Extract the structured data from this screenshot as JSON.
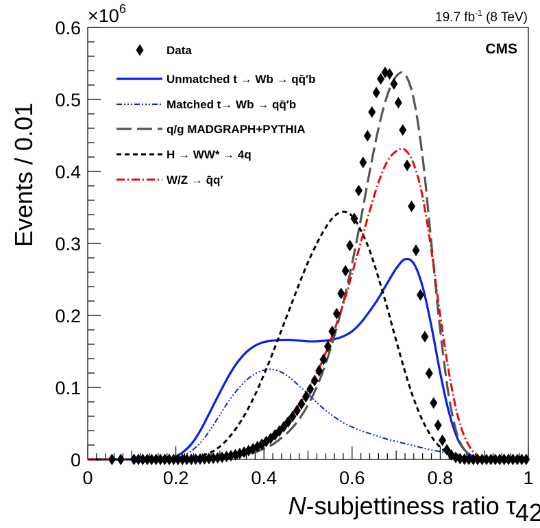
{
  "chart_data": {
    "type": "line",
    "title": "",
    "xlabel_italic": "N",
    "xlabel_rest": "-subjettiness ratio τ",
    "xlabel_sub": "42",
    "ylabel": "Events / 0.01",
    "multiplier_base": "×10",
    "multiplier_exp": "6",
    "lumi_main": "19.7 fb",
    "lumi_sup": "-1",
    "lumi_tail": " (8 TeV)",
    "experiment": "CMS",
    "xlim": [
      0,
      1
    ],
    "ylim": [
      0,
      0.6
    ],
    "x_ticks": [
      {
        "v": 0,
        "label": "0"
      },
      {
        "v": 0.2,
        "label": "0.2"
      },
      {
        "v": 0.4,
        "label": "0.4"
      },
      {
        "v": 0.6,
        "label": "0.6"
      },
      {
        "v": 0.8,
        "label": "0.8"
      },
      {
        "v": 1,
        "label": "1"
      }
    ],
    "y_ticks": [
      {
        "v": 0,
        "label": "0"
      },
      {
        "v": 0.1,
        "label": "0.1"
      },
      {
        "v": 0.2,
        "label": "0.2"
      },
      {
        "v": 0.3,
        "label": "0.3"
      },
      {
        "v": 0.4,
        "label": "0.4"
      },
      {
        "v": 0.5,
        "label": "0.5"
      },
      {
        "v": 0.6,
        "label": "0.6"
      }
    ],
    "legend": [
      {
        "key": "data",
        "label": "Data",
        "style": "marker"
      },
      {
        "key": "unmatched",
        "label": "Unmatched t → Wb → qq̄′b",
        "style": "line"
      },
      {
        "key": "matched",
        "label": "Matched t→ Wb → qq̄′b",
        "style": "line"
      },
      {
        "key": "qg",
        "label": "q/g MADGRAPH+PYTHIA",
        "style": "line"
      },
      {
        "key": "hww",
        "label": "H → WW* → 4q",
        "style": "line"
      },
      {
        "key": "wz",
        "label": "W/Z → q̄q′",
        "style": "line"
      }
    ],
    "data_points": {
      "x": [
        0.055,
        0.075,
        0.105,
        0.115,
        0.125,
        0.135,
        0.145,
        0.155,
        0.165,
        0.175,
        0.185,
        0.195,
        0.205,
        0.215,
        0.225,
        0.235,
        0.245,
        0.255,
        0.265,
        0.275,
        0.285,
        0.295,
        0.305,
        0.315,
        0.325,
        0.335,
        0.345,
        0.355,
        0.365,
        0.375,
        0.385,
        0.395,
        0.405,
        0.415,
        0.425,
        0.435,
        0.445,
        0.455,
        0.465,
        0.475,
        0.485,
        0.495,
        0.505,
        0.515,
        0.525,
        0.535,
        0.545,
        0.555,
        0.565,
        0.575,
        0.585,
        0.595,
        0.605,
        0.615,
        0.625,
        0.635,
        0.645,
        0.655,
        0.665,
        0.675,
        0.685,
        0.695,
        0.705,
        0.715,
        0.725,
        0.735,
        0.745,
        0.755,
        0.765,
        0.775,
        0.785,
        0.795,
        0.805,
        0.815,
        0.825,
        0.835,
        0.845,
        0.855,
        0.865,
        0.875,
        0.885,
        0.895,
        0.905,
        0.915,
        0.925,
        0.935,
        0.945,
        0.955,
        0.965,
        0.975,
        0.985,
        0.995
      ],
      "y": [
        0,
        0,
        0,
        0,
        0,
        0,
        0,
        0,
        0,
        0,
        0,
        0,
        0,
        0,
        0,
        0,
        0.0003,
        0.0005,
        0.0008,
        0.0012,
        0.0017,
        0.0023,
        0.003,
        0.004,
        0.0052,
        0.0066,
        0.0082,
        0.0101,
        0.0123,
        0.0149,
        0.0178,
        0.0211,
        0.0249,
        0.0291,
        0.034,
        0.0394,
        0.0455,
        0.0523,
        0.0598,
        0.068,
        0.077,
        0.0869,
        0.0977,
        0.1095,
        0.1232,
        0.1388,
        0.157,
        0.178,
        0.2025,
        0.2305,
        0.262,
        0.297,
        0.3345,
        0.3735,
        0.4125,
        0.4495,
        0.4825,
        0.5095,
        0.5285,
        0.5375,
        0.5355,
        0.5215,
        0.4955,
        0.4575,
        0.4085,
        0.3515,
        0.2905,
        0.2285,
        0.1705,
        0.1195,
        0.0785,
        0.0475,
        0.0265,
        0.0135,
        0.0063,
        0.0027,
        0.0011,
        0.0004,
        0.0001,
        0,
        0,
        0,
        0,
        0,
        0,
        0,
        0,
        0,
        0,
        0,
        0,
        0
      ]
    },
    "series": [
      {
        "key": "unmatched",
        "name": "Unmatched t → Wb → qq̄′b",
        "color": "#0a1ee6",
        "dash": "",
        "width": 3.2,
        "x": [
          0,
          0.15,
          0.18,
          0.2,
          0.22,
          0.24,
          0.26,
          0.28,
          0.3,
          0.32,
          0.34,
          0.36,
          0.38,
          0.4,
          0.42,
          0.44,
          0.46,
          0.48,
          0.5,
          0.52,
          0.54,
          0.56,
          0.58,
          0.6,
          0.62,
          0.64,
          0.66,
          0.68,
          0.7,
          0.72,
          0.74,
          0.76,
          0.78,
          0.8,
          0.82,
          0.84,
          0.86,
          0.88,
          0.9,
          0.92,
          0.95,
          1
        ],
        "y": [
          0,
          0,
          0.001,
          0.004,
          0.012,
          0.025,
          0.045,
          0.069,
          0.093,
          0.116,
          0.135,
          0.149,
          0.158,
          0.163,
          0.165,
          0.166,
          0.166,
          0.165,
          0.164,
          0.164,
          0.165,
          0.167,
          0.171,
          0.178,
          0.19,
          0.206,
          0.224,
          0.245,
          0.265,
          0.278,
          0.272,
          0.24,
          0.185,
          0.12,
          0.065,
          0.028,
          0.01,
          0.003,
          0.001,
          0,
          0,
          0
        ]
      },
      {
        "key": "matched",
        "name": "Matched t→ Wb → qq̄′b",
        "color": "#0a1ee6",
        "dash": "8 3 2 3 2 3 2 3",
        "width": 2,
        "x": [
          0,
          0.15,
          0.2,
          0.22,
          0.24,
          0.26,
          0.28,
          0.3,
          0.32,
          0.34,
          0.36,
          0.38,
          0.4,
          0.42,
          0.44,
          0.46,
          0.48,
          0.5,
          0.52,
          0.54,
          0.56,
          0.58,
          0.6,
          0.62,
          0.64,
          0.66,
          0.68,
          0.7,
          0.72,
          0.74,
          0.76,
          0.78,
          0.8,
          0.82,
          0.84,
          0.86,
          0.88,
          0.9,
          1
        ],
        "y": [
          0,
          0,
          0.002,
          0.006,
          0.014,
          0.026,
          0.043,
          0.062,
          0.081,
          0.097,
          0.11,
          0.119,
          0.124,
          0.125,
          0.121,
          0.113,
          0.102,
          0.091,
          0.079,
          0.068,
          0.059,
          0.051,
          0.045,
          0.04,
          0.036,
          0.032,
          0.028,
          0.025,
          0.022,
          0.019,
          0.016,
          0.013,
          0.011,
          0.008,
          0.005,
          0.003,
          0.001,
          0.0003,
          0
        ]
      },
      {
        "key": "qg",
        "name": "q/g MADGRAPH+PYTHIA",
        "color": "#555555",
        "dash": "22 8",
        "width": 3.2,
        "x": [
          0,
          0.25,
          0.28,
          0.3,
          0.32,
          0.34,
          0.36,
          0.38,
          0.4,
          0.42,
          0.44,
          0.46,
          0.48,
          0.5,
          0.52,
          0.54,
          0.56,
          0.58,
          0.6,
          0.62,
          0.64,
          0.66,
          0.68,
          0.7,
          0.72,
          0.74,
          0.76,
          0.78,
          0.8,
          0.82,
          0.84,
          0.86,
          0.88,
          0.9,
          1
        ],
        "y": [
          0,
          0,
          0.001,
          0.002,
          0.003,
          0.005,
          0.007,
          0.01,
          0.015,
          0.021,
          0.03,
          0.041,
          0.056,
          0.076,
          0.101,
          0.133,
          0.172,
          0.218,
          0.272,
          0.334,
          0.4,
          0.46,
          0.506,
          0.532,
          0.535,
          0.5,
          0.42,
          0.3,
          0.18,
          0.086,
          0.032,
          0.01,
          0.003,
          0.001,
          0
        ]
      },
      {
        "key": "hww",
        "name": "H → WW* → 4q",
        "color": "#000000",
        "dash": "7 5",
        "width": 3,
        "x": [
          0,
          0.2,
          0.24,
          0.28,
          0.3,
          0.32,
          0.34,
          0.36,
          0.38,
          0.4,
          0.42,
          0.44,
          0.46,
          0.48,
          0.5,
          0.52,
          0.54,
          0.56,
          0.58,
          0.6,
          0.62,
          0.64,
          0.66,
          0.68,
          0.7,
          0.72,
          0.74,
          0.76,
          0.78,
          0.8,
          0.82,
          0.84,
          0.86,
          0.88,
          0.9,
          1
        ],
        "y": [
          0,
          0,
          0.002,
          0.01,
          0.018,
          0.03,
          0.046,
          0.066,
          0.09,
          0.118,
          0.148,
          0.18,
          0.212,
          0.244,
          0.274,
          0.3,
          0.322,
          0.338,
          0.344,
          0.338,
          0.318,
          0.29,
          0.252,
          0.21,
          0.165,
          0.122,
          0.084,
          0.054,
          0.032,
          0.017,
          0.008,
          0.0035,
          0.0013,
          0.0004,
          0,
          0
        ]
      },
      {
        "key": "wz",
        "name": "W/Z → q̄q′",
        "color": "#e60a0a",
        "dash": "12 4 2 4",
        "width": 3,
        "x": [
          0,
          0.25,
          0.28,
          0.3,
          0.32,
          0.34,
          0.36,
          0.38,
          0.4,
          0.42,
          0.44,
          0.46,
          0.48,
          0.5,
          0.52,
          0.54,
          0.56,
          0.58,
          0.6,
          0.62,
          0.64,
          0.66,
          0.68,
          0.7,
          0.72,
          0.74,
          0.76,
          0.78,
          0.8,
          0.82,
          0.84,
          0.86,
          0.88,
          0.9,
          1
        ],
        "y": [
          0,
          0,
          0.002,
          0.003,
          0.006,
          0.009,
          0.013,
          0.019,
          0.026,
          0.035,
          0.046,
          0.06,
          0.076,
          0.096,
          0.12,
          0.148,
          0.18,
          0.216,
          0.258,
          0.302,
          0.345,
          0.385,
          0.414,
          0.428,
          0.43,
          0.41,
          0.365,
          0.29,
          0.2,
          0.12,
          0.06,
          0.025,
          0.008,
          0.002,
          0
        ]
      }
    ]
  }
}
